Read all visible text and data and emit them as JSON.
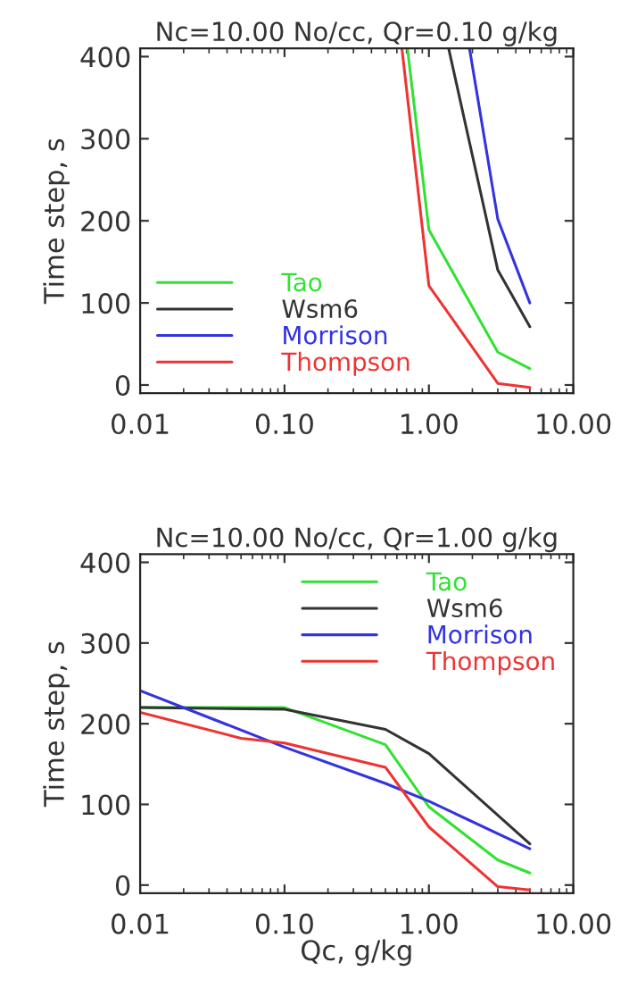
{
  "chart_data": [
    {
      "type": "line",
      "title": "Nc=10.00 No/cc, Qr=0.10 g/kg",
      "ylabel": "Time step, s",
      "log": "x",
      "grid": false,
      "legend": "bottom left",
      "marker": "none",
      "line_style": "solid",
      "xlim": [
        0.01,
        10
      ],
      "xticks": [
        {
          "value": 0.01,
          "label": "0.01"
        },
        {
          "value": 0.1,
          "label": "0.10"
        },
        {
          "value": 1,
          "label": "1.00"
        },
        {
          "value": 10,
          "label": "10.00"
        }
      ],
      "ylim": [
        -10,
        410
      ],
      "yticks": [
        0,
        100,
        200,
        300,
        400
      ],
      "series": [
        {
          "name": "Tao",
          "color": "#33e033",
          "x": [
            0.71,
            1,
            3,
            5
          ],
          "values": [
            410,
            189,
            40,
            20
          ]
        },
        {
          "name": "Wsm6",
          "color": "#333333",
          "x": [
            1.37,
            3,
            5
          ],
          "values": [
            410,
            140,
            71
          ]
        },
        {
          "name": "Morrison",
          "color": "#3333e0",
          "x": [
            1.91,
            3,
            5
          ],
          "values": [
            410,
            202,
            100
          ]
        },
        {
          "name": "Thompson",
          "color": "#ee3333",
          "x": [
            0.65,
            1,
            3,
            5
          ],
          "values": [
            410,
            121,
            2,
            -3
          ]
        }
      ]
    },
    {
      "type": "line",
      "title": "Nc=10.00 No/cc, Qr=1.00 g/kg",
      "xlabel": "Qc, g/kg",
      "ylabel": "Time step, s",
      "log": "x",
      "grid": false,
      "legend": "top right",
      "marker": "none",
      "line_style": "solid",
      "xlim": [
        0.01,
        10
      ],
      "xticks": [
        {
          "value": 0.01,
          "label": "0.01"
        },
        {
          "value": 0.1,
          "label": "0.10"
        },
        {
          "value": 1,
          "label": "1.00"
        },
        {
          "value": 10,
          "label": "10.00"
        }
      ],
      "ylim": [
        -10,
        410
      ],
      "yticks": [
        0,
        100,
        200,
        300,
        400
      ],
      "series": [
        {
          "name": "Tao",
          "color": "#33e033",
          "x": [
            0.01,
            0.1,
            0.5,
            1,
            3,
            5
          ],
          "values": [
            220,
            220,
            174,
            97,
            31,
            15
          ]
        },
        {
          "name": "Wsm6",
          "color": "#333333",
          "x": [
            0.01,
            0.1,
            0.5,
            1,
            5
          ],
          "values": [
            220,
            218,
            193,
            163,
            51
          ]
        },
        {
          "name": "Morrison",
          "color": "#3333e0",
          "x": [
            0.01,
            0.1,
            0.5,
            1,
            5
          ],
          "values": [
            241,
            171,
            126,
            104,
            45
          ]
        },
        {
          "name": "Thompson",
          "color": "#ee3333",
          "x": [
            0.01,
            0.05,
            0.1,
            0.5,
            1,
            3,
            5
          ],
          "values": [
            214,
            182,
            176,
            146,
            72,
            -2,
            -6
          ]
        }
      ]
    }
  ]
}
